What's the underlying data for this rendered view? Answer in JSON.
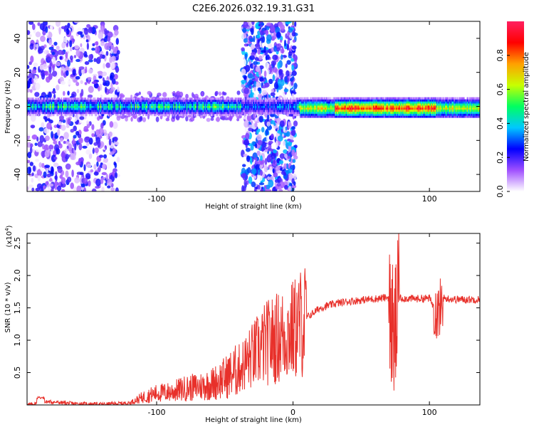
{
  "title": "C2E6.2026.032.19.31.G31",
  "chart_data": [
    {
      "type": "heatmap",
      "xlabel": "Height of straight line (km)",
      "ylabel": "Frequency (Hz)",
      "xlim": [
        -195,
        137
      ],
      "ylim": [
        -50,
        50
      ],
      "xticks": [
        -100,
        0,
        100
      ],
      "yticks": [
        -40,
        -20,
        0,
        20,
        40
      ],
      "colorbar": {
        "label": "Normalized spectral amplitude",
        "range": [
          0,
          1
        ],
        "ticks": [
          0.0,
          0.2,
          0.4,
          0.6,
          0.8
        ],
        "tick_labels": [
          "0.0",
          "0.2",
          "0.4",
          "0.6",
          "0.8"
        ],
        "colors": [
          "#ffffff",
          "#a050ff",
          "#0000ff",
          "#00c8ff",
          "#00ff60",
          "#c8ff00",
          "#ffa000",
          "#ff0000",
          "#ff2060"
        ]
      },
      "ridge_frequency_hz": 0,
      "noisy_regions_km": [
        [
          -195,
          -128
        ],
        [
          -37,
          2
        ]
      ],
      "clean_region_km": [
        5,
        137
      ]
    },
    {
      "type": "line",
      "xlabel": "Height of straight line (km)",
      "ylabel": "SNR (10 * v/v)",
      "y_multiplier_label": "(x10",
      "y_multiplier_exponent": "4",
      "y_multiplier_close": ")",
      "xlim": [
        -195,
        137
      ],
      "ylim": [
        0,
        2.65
      ],
      "xticks": [
        -100,
        0,
        100
      ],
      "yticks": [
        0.5,
        1.0,
        1.5,
        2.0,
        2.5
      ],
      "ytick_labels": [
        "0.5",
        "1.0",
        "1.5",
        "2.0",
        "2.5"
      ],
      "series": [
        {
          "name": "SNR",
          "color": "#e8302a",
          "x": [
            -195,
            -180,
            -160,
            -140,
            -120,
            -110,
            -100,
            -90,
            -80,
            -70,
            -60,
            -50,
            -40,
            -30,
            -20,
            -10,
            0,
            10,
            20,
            30,
            40,
            50,
            60,
            70,
            74,
            78,
            90,
            100,
            106,
            110,
            120,
            137
          ],
          "y": [
            0.0,
            0.05,
            0.02,
            0.01,
            0.03,
            0.12,
            0.18,
            0.2,
            0.25,
            0.28,
            0.32,
            0.42,
            0.55,
            0.75,
            0.95,
            1.05,
            1.15,
            1.35,
            1.5,
            1.56,
            1.6,
            1.62,
            1.64,
            1.66,
            1.0,
            1.65,
            1.64,
            1.65,
            1.4,
            1.65,
            1.63,
            1.63
          ]
        }
      ]
    }
  ]
}
